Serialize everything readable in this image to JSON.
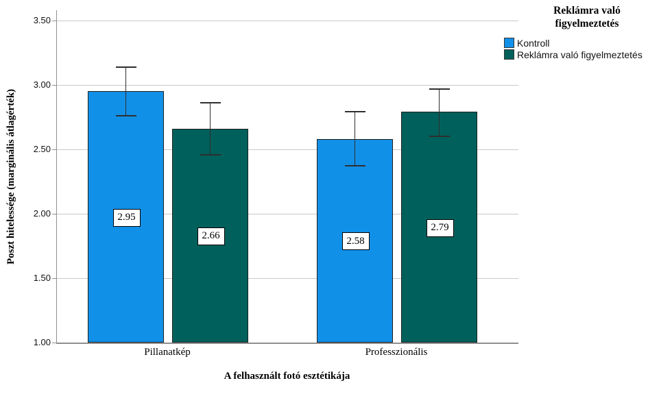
{
  "chart_data": {
    "type": "bar",
    "title": "",
    "xlabel": "A felhasznált fotó esztétikája",
    "ylabel": "Poszt hitelessége (marginális átlagérték)",
    "categories": [
      "Pillanatkép",
      "Professzionális"
    ],
    "series": [
      {
        "name": "Kontroll",
        "color": "#1190e8",
        "values": [
          2.95,
          2.58
        ],
        "value_labels": [
          "2.95",
          "2.58"
        ],
        "error_low": [
          2.76,
          2.37
        ],
        "error_high": [
          3.14,
          2.79
        ]
      },
      {
        "name": "Reklámra való figyelmeztetés",
        "color": "#00605b",
        "values": [
          2.66,
          2.79
        ],
        "value_labels": [
          "2.66",
          "2.79"
        ],
        "error_low": [
          2.46,
          2.6
        ],
        "error_high": [
          2.86,
          2.97
        ]
      }
    ],
    "ylim": [
      1.0,
      3.5
    ],
    "yticks": [
      {
        "value": 1.0,
        "label": "1.00"
      },
      {
        "value": 1.5,
        "label": "1.50"
      },
      {
        "value": 2.0,
        "label": "2.00"
      },
      {
        "value": 2.5,
        "label": "2.50"
      },
      {
        "value": 3.0,
        "label": "3.00"
      },
      {
        "value": 3.5,
        "label": "3.50"
      }
    ],
    "grid": "horizontal",
    "legend": {
      "title": "Reklámra való figyelmeztetés",
      "position": "top-right",
      "entries": [
        {
          "label": "Kontroll",
          "color": "#1190e8"
        },
        {
          "label": "Reklámra való figyelmeztetés",
          "color": "#00605b"
        }
      ]
    },
    "styles": {
      "bar_border": "#1f1f1f",
      "error_bar": "#2e2e2e",
      "gridline": "#c9c9c9",
      "axis_line": "#8f8f8f",
      "value_box_bg": "#ffffff",
      "value_box_border": "#000000",
      "background": "#ffffff"
    }
  }
}
